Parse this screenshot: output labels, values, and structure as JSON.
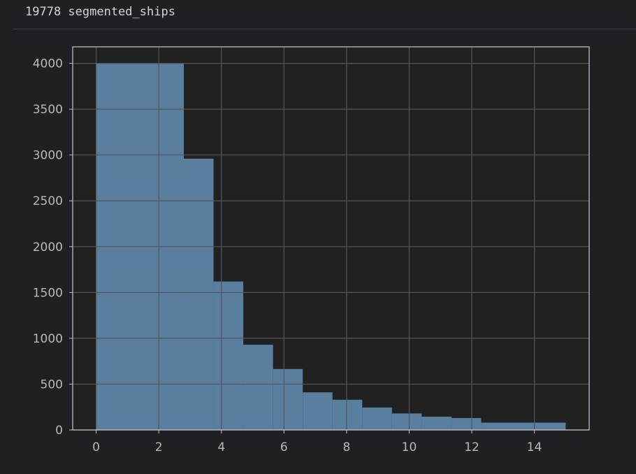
{
  "output": {
    "text": "19778 segmented_ships"
  },
  "colors": {
    "background": "#1f2023",
    "axes_background": "#212121",
    "bar": "#5a7f9e",
    "grid": "#555555",
    "spine": "#c8c8c8",
    "tick_text": "#b9b9b9"
  },
  "chart_data": {
    "type": "bar",
    "title": "",
    "xlabel": "",
    "ylabel": "",
    "grid": true,
    "xlim": [
      -0.75,
      15.75
    ],
    "ylim": [
      0,
      4180
    ],
    "xticks": [
      0,
      2,
      4,
      6,
      8,
      10,
      12,
      14
    ],
    "yticks": [
      0,
      500,
      1000,
      1500,
      2000,
      2500,
      3000,
      3500,
      4000
    ],
    "bins": [
      {
        "x0": 0.0,
        "x1": 2.8,
        "value": 4000
      },
      {
        "x0": 2.8,
        "x1": 3.75,
        "value": 2960
      },
      {
        "x0": 3.75,
        "x1": 4.7,
        "value": 1620
      },
      {
        "x0": 4.7,
        "x1": 5.65,
        "value": 930
      },
      {
        "x0": 5.65,
        "x1": 6.6,
        "value": 665
      },
      {
        "x0": 6.6,
        "x1": 7.55,
        "value": 410
      },
      {
        "x0": 7.55,
        "x1": 8.5,
        "value": 330
      },
      {
        "x0": 8.5,
        "x1": 9.45,
        "value": 245
      },
      {
        "x0": 9.45,
        "x1": 10.4,
        "value": 180
      },
      {
        "x0": 10.4,
        "x1": 11.35,
        "value": 145
      },
      {
        "x0": 11.35,
        "x1": 12.3,
        "value": 130
      },
      {
        "x0": 12.3,
        "x1": 15.0,
        "value": 80
      }
    ]
  }
}
